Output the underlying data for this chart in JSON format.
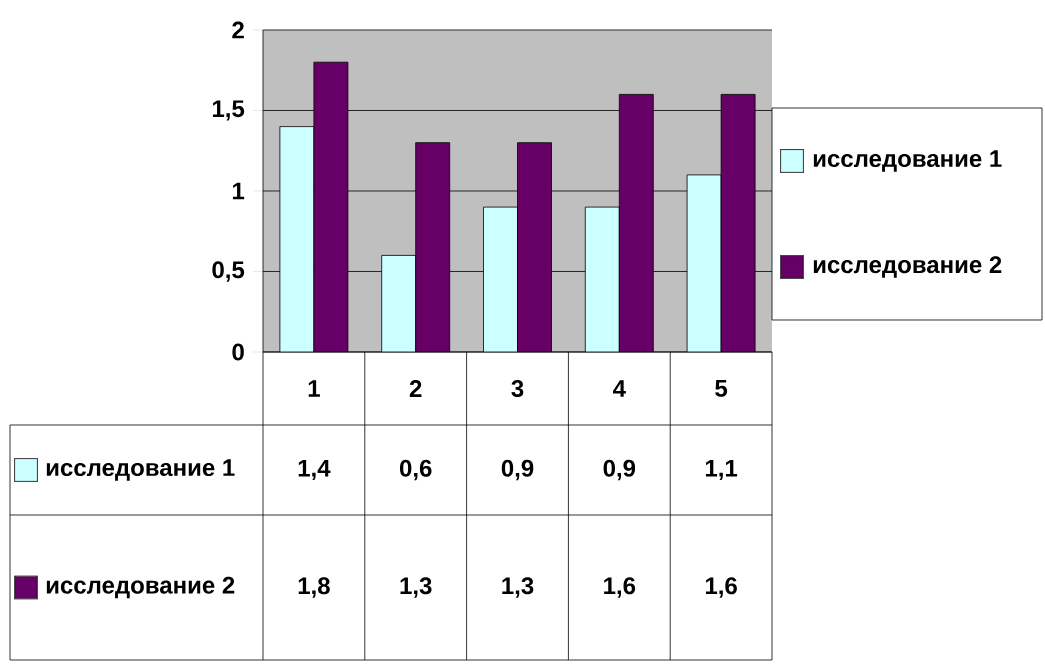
{
  "chart_data": {
    "type": "bar",
    "categories": [
      "1",
      "2",
      "3",
      "4",
      "5"
    ],
    "series": [
      {
        "name": "исследование 1",
        "color": "#ccffff",
        "values": [
          1.4,
          0.6,
          0.9,
          0.9,
          1.1
        ],
        "value_labels": [
          "1,4",
          "0,6",
          "0,9",
          "0,9",
          "1,1"
        ]
      },
      {
        "name": "исследование 2",
        "color": "#660066",
        "values": [
          1.8,
          1.3,
          1.3,
          1.6,
          1.6
        ],
        "value_labels": [
          "1,8",
          "1,3",
          "1,3",
          "1,6",
          "1,6"
        ]
      }
    ],
    "ylim": [
      0,
      2
    ],
    "yticks": [
      0,
      {
        "value": 0.5,
        "label": "0,5"
      },
      1,
      {
        "value": 1.5,
        "label": "1,5"
      },
      2
    ],
    "grid": "y",
    "legend": "right"
  }
}
